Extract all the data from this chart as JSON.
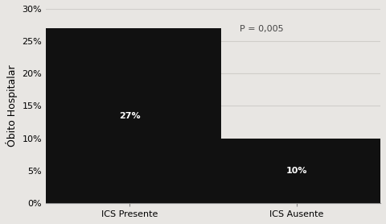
{
  "categories": [
    "ICS Presente",
    "ICS Ausente"
  ],
  "values": [
    27,
    10
  ],
  "bar_colors": [
    "#111111",
    "#111111"
  ],
  "bar_labels": [
    "27%",
    "10%"
  ],
  "bar_label_color": "#ffffff",
  "bar_label_fontsize": 8,
  "ylabel": "Óbito Hospitalar",
  "ylabel_fontsize": 9,
  "ylim": [
    0,
    30
  ],
  "yticks": [
    0,
    5,
    10,
    15,
    20,
    25,
    30
  ],
  "ytick_labels": [
    "0%",
    "5%",
    "10%",
    "15%",
    "20%",
    "25%",
    "30%"
  ],
  "annotation_text": "P = 0,005",
  "annotation_fontsize": 8,
  "bar_width": 0.55,
  "background_color": "#e8e6e3",
  "grid_color": "#d0ceca",
  "tick_fontsize": 8,
  "xlabel_fontsize": 8,
  "x_positions": [
    0.25,
    0.75
  ],
  "xlim": [
    0.0,
    1.0
  ]
}
